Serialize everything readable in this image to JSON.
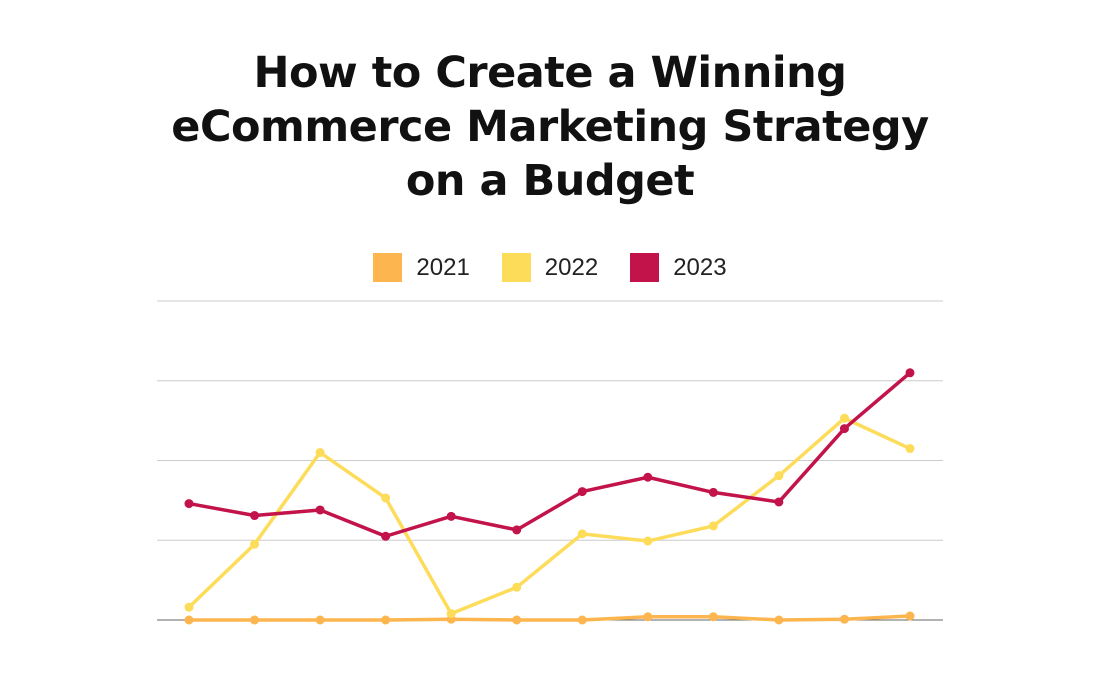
{
  "chart_data": {
    "type": "line",
    "title_lines": [
      "How to Create a Winning",
      "eCommerce Marketing Strategy",
      "on a Budget"
    ],
    "xlabel": "",
    "ylabel": "",
    "x": [
      1,
      2,
      3,
      4,
      5,
      6,
      7,
      8,
      9,
      10,
      11,
      12
    ],
    "ylim": [
      0,
      4
    ],
    "grid": true,
    "legend_placement": "top-center",
    "series": [
      {
        "name": "2021",
        "color": "#FDB54F",
        "values": [
          0,
          0,
          0,
          0,
          0.01,
          0,
          0,
          0.04,
          0.04,
          0,
          0.01,
          0.05
        ]
      },
      {
        "name": "2022",
        "color": "#FDDC5A",
        "values": [
          0.16,
          0.95,
          2.1,
          1.53,
          0.08,
          0.41,
          1.08,
          0.99,
          1.18,
          1.81,
          2.53,
          2.15
        ]
      },
      {
        "name": "2023",
        "color": "#C2134A",
        "values": [
          1.46,
          1.31,
          1.38,
          1.05,
          1.3,
          1.13,
          1.61,
          1.79,
          1.6,
          1.48,
          2.4,
          3.1
        ]
      }
    ]
  }
}
